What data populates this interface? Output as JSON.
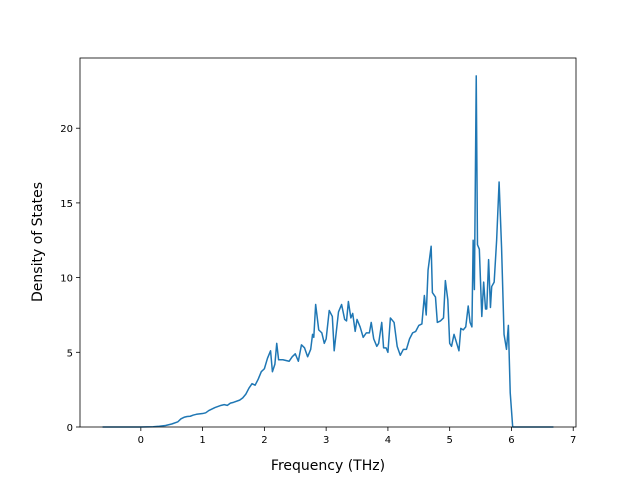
{
  "chart_data": {
    "type": "line",
    "xlabel": "Frequency (THz)",
    "ylabel": "Density of States",
    "x": [
      -0.62,
      0,
      0.2,
      0.3,
      0.4,
      0.5,
      0.6,
      0.65,
      0.7,
      0.75,
      0.8,
      0.85,
      0.9,
      1.0,
      1.05,
      1.1,
      1.2,
      1.3,
      1.35,
      1.4,
      1.45,
      1.5,
      1.6,
      1.65,
      1.7,
      1.75,
      1.8,
      1.85,
      1.9,
      1.95,
      2.0,
      2.05,
      2.1,
      2.13,
      2.17,
      2.2,
      2.23,
      2.3,
      2.4,
      2.45,
      2.5,
      2.55,
      2.6,
      2.65,
      2.7,
      2.75,
      2.78,
      2.8,
      2.83,
      2.88,
      2.93,
      2.97,
      3.0,
      3.05,
      3.1,
      3.13,
      3.2,
      3.25,
      3.3,
      3.33,
      3.36,
      3.4,
      3.43,
      3.47,
      3.5,
      3.55,
      3.6,
      3.65,
      3.7,
      3.73,
      3.77,
      3.82,
      3.85,
      3.9,
      3.93,
      3.97,
      4.0,
      4.04,
      4.1,
      4.15,
      4.2,
      4.25,
      4.3,
      4.35,
      4.4,
      4.45,
      4.5,
      4.55,
      4.59,
      4.62,
      4.65,
      4.7,
      4.72,
      4.77,
      4.8,
      4.85,
      4.9,
      4.93,
      4.97,
      5.0,
      5.03,
      5.07,
      5.1,
      5.15,
      5.18,
      5.22,
      5.26,
      5.3,
      5.33,
      5.36,
      5.38,
      5.4,
      5.43,
      5.45,
      5.48,
      5.52,
      5.55,
      5.58,
      5.6,
      5.63,
      5.66,
      5.68,
      5.72,
      5.76,
      5.8,
      5.84,
      5.88,
      5.92,
      5.95,
      5.98,
      6.02,
      6.07,
      6.68
    ],
    "y": [
      0,
      0,
      0.02,
      0.05,
      0.1,
      0.2,
      0.35,
      0.55,
      0.65,
      0.7,
      0.72,
      0.8,
      0.85,
      0.9,
      0.95,
      1.1,
      1.3,
      1.45,
      1.5,
      1.45,
      1.6,
      1.65,
      1.8,
      1.95,
      2.2,
      2.6,
      2.9,
      2.8,
      3.2,
      3.7,
      3.9,
      4.6,
      5.1,
      3.7,
      4.2,
      5.6,
      4.5,
      4.5,
      4.4,
      4.7,
      4.9,
      4.4,
      5.5,
      5.3,
      4.7,
      5.2,
      6.2,
      6.0,
      8.2,
      6.5,
      6.3,
      5.6,
      5.9,
      7.8,
      7.4,
      5.1,
      7.7,
      8.2,
      7.2,
      7.1,
      8.4,
      7.3,
      7.6,
      6.4,
      7.2,
      6.7,
      6.0,
      6.3,
      6.3,
      7.0,
      5.9,
      5.4,
      5.6,
      7.0,
      5.3,
      5.3,
      5.0,
      7.3,
      7.0,
      5.4,
      4.8,
      5.2,
      5.2,
      5.9,
      6.3,
      6.4,
      6.8,
      6.9,
      8.8,
      7.5,
      10.5,
      12.1,
      9.0,
      8.7,
      7.0,
      7.1,
      7.3,
      9.8,
      8.5,
      5.6,
      5.4,
      6.2,
      5.8,
      5.1,
      6.6,
      6.5,
      6.7,
      8.1,
      7.0,
      6.7,
      12.5,
      9.2,
      23.5,
      12.2,
      11.9,
      7.4,
      9.7,
      7.9,
      7.9,
      11.2,
      8.0,
      9.4,
      9.7,
      12.5,
      16.4,
      12.0,
      6.2,
      5.2,
      6.8,
      2.3,
      0,
      0,
      0
    ],
    "color": "#1f77b4",
    "xlim": [
      -0.985,
      7.045
    ],
    "xticks": [
      0,
      1,
      2,
      3,
      4,
      5,
      6,
      7
    ],
    "ylim": [
      0,
      24.7
    ],
    "yticks": [
      0,
      5,
      10,
      15,
      20
    ]
  }
}
